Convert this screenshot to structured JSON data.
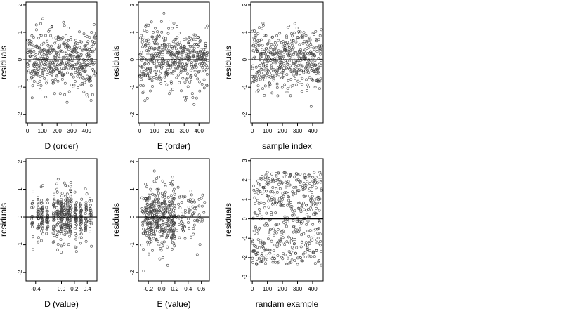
{
  "figure": {
    "panels": [
      {
        "id": "d-order",
        "xlabel": "D (order)",
        "ylabel": "residuals",
        "xlim": [
          -10,
          470
        ],
        "ylim": [
          -2.3,
          2.1
        ],
        "xticks": [
          0,
          100,
          200,
          300,
          400
        ],
        "yticks": [
          -2,
          -1,
          0,
          1,
          2
        ],
        "seed": 11,
        "n": 460,
        "mode": "index",
        "sd": 0.55,
        "hline": 0
      },
      {
        "id": "e-order",
        "xlabel": "E (order)",
        "ylabel": "residuals",
        "xlim": [
          -10,
          470
        ],
        "ylim": [
          -2.3,
          2.1
        ],
        "xticks": [
          0,
          100,
          200,
          300,
          400
        ],
        "yticks": [
          -2,
          -1,
          0,
          1,
          2
        ],
        "seed": 23,
        "n": 460,
        "mode": "index",
        "sd": 0.55,
        "hline": 0
      },
      {
        "id": "sample-index",
        "xlabel": "sample index",
        "ylabel": "residuals",
        "xlim": [
          -10,
          470
        ],
        "ylim": [
          -2.3,
          2.1
        ],
        "xticks": [
          0,
          100,
          200,
          300,
          400
        ],
        "yticks": [
          -2,
          -1,
          0,
          1,
          2
        ],
        "seed": 37,
        "n": 460,
        "mode": "index",
        "sd": 0.55,
        "hline": 0
      },
      {
        "id": "d-value",
        "xlabel": "D (value)",
        "ylabel": "residuals",
        "xlim": [
          -0.55,
          0.55
        ],
        "ylim": [
          -2.3,
          2.1
        ],
        "xticks": [
          -0.4,
          0.0,
          0.2,
          0.4
        ],
        "xticklabels": [
          "-0.4",
          "0.0",
          "0.2",
          "0.4"
        ],
        "yticks": [
          -2,
          -1,
          0,
          1,
          2
        ],
        "seed": 53,
        "n": 460,
        "mode": "value-d",
        "sd": 0.55,
        "hline": 0
      },
      {
        "id": "e-value",
        "xlabel": "E (value)",
        "ylabel": "residuals",
        "xlim": [
          -0.35,
          0.72
        ],
        "ylim": [
          -2.3,
          2.1
        ],
        "xticks": [
          -0.2,
          0.0,
          0.2,
          0.4,
          0.6
        ],
        "xticklabels": [
          "-0.2",
          "0.0",
          "0.2",
          "0.4",
          "0.6"
        ],
        "yticks": [
          -2,
          -1,
          0,
          1,
          2
        ],
        "seed": 71,
        "n": 460,
        "mode": "value-e",
        "sd": 0.55,
        "hline": 0
      },
      {
        "id": "random-example",
        "xlabel": "randam example",
        "ylabel": "residuals",
        "xlim": [
          -10,
          470
        ],
        "ylim": [
          -3.2,
          3.1
        ],
        "xticks": [
          0,
          100,
          200,
          300,
          400
        ],
        "yticks": [
          -3,
          -2,
          -1,
          0,
          1,
          2,
          3
        ],
        "seed": 97,
        "n": 460,
        "mode": "uniform",
        "sd": 1.0,
        "hline": 0
      }
    ]
  },
  "chart_data": [
    {
      "type": "scatter",
      "xlabel": "D (order)",
      "ylabel": "residuals",
      "xlim": [
        -10,
        470
      ],
      "ylim": [
        -2.3,
        2.1
      ],
      "points": 460,
      "reference_line_y": 0
    },
    {
      "type": "scatter",
      "xlabel": "E (order)",
      "ylabel": "residuals",
      "xlim": [
        -10,
        470
      ],
      "ylim": [
        -2.3,
        2.1
      ],
      "points": 460,
      "reference_line_y": 0
    },
    {
      "type": "scatter",
      "xlabel": "sample index",
      "ylabel": "residuals",
      "xlim": [
        -10,
        470
      ],
      "ylim": [
        -2.3,
        2.1
      ],
      "points": 460,
      "reference_line_y": 0
    },
    {
      "type": "scatter",
      "xlabel": "D (value)",
      "ylabel": "residuals",
      "xlim": [
        -0.55,
        0.55
      ],
      "ylim": [
        -2.3,
        2.1
      ],
      "points": 460,
      "reference_line_y": 0
    },
    {
      "type": "scatter",
      "xlabel": "E (value)",
      "ylabel": "residuals",
      "xlim": [
        -0.35,
        0.72
      ],
      "ylim": [
        -2.3,
        2.1
      ],
      "points": 460,
      "reference_line_y": 0
    },
    {
      "type": "scatter",
      "xlabel": "randam example",
      "ylabel": "residuals",
      "xlim": [
        -10,
        470
      ],
      "ylim": [
        -3.2,
        3.1
      ],
      "points": 460,
      "reference_line_y": 0
    }
  ],
  "colors": {
    "points": "#444444",
    "axis": "#000000",
    "background": "#ffffff"
  }
}
